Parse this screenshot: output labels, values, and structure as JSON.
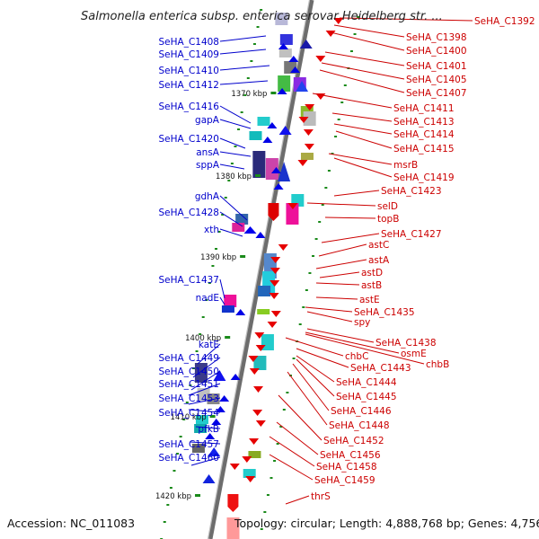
{
  "title": "Salmonella enterica subsp. enterica serovar Heidelberg str. ...",
  "accession": "Accession: NC_011083",
  "topology": "Topology: circular; Length: 4,888,768 bp; Genes: 4,756",
  "colors": {
    "left_label": "#0000cc",
    "right_label": "#cc0000",
    "forward_arrow": "#0000e6",
    "reverse_arrow": "#e60000",
    "backbone": "#777777",
    "tick": "#1a8a1a"
  },
  "kbp_ticks": [
    {
      "label": "1370 kbp"
    },
    {
      "label": "1380 kbp"
    },
    {
      "label": "1390 kbp"
    },
    {
      "label": "1400 kbp"
    },
    {
      "label": "1410 kbp"
    },
    {
      "label": "1420 kbp"
    }
  ],
  "left_genes": [
    {
      "label": "SeHA_C1408"
    },
    {
      "label": "SeHA_C1409"
    },
    {
      "label": "SeHA_C1410"
    },
    {
      "label": "SeHA_C1412"
    },
    {
      "label": "SeHA_C1416"
    },
    {
      "label": "gapA"
    },
    {
      "label": "SeHA_C1420"
    },
    {
      "label": "ansA"
    },
    {
      "label": "sppA"
    },
    {
      "label": "gdhA"
    },
    {
      "label": "SeHA_C1428"
    },
    {
      "label": "xth"
    },
    {
      "label": "SeHA_C1437"
    },
    {
      "label": "nadE"
    },
    {
      "label": "katE"
    },
    {
      "label": "SeHA_C1449"
    },
    {
      "label": "SeHA_C1450"
    },
    {
      "label": "SeHA_C1451"
    },
    {
      "label": "SeHA_C1453"
    },
    {
      "label": "SeHA_C1454"
    },
    {
      "label": "pfkB"
    },
    {
      "label": "SeHA_C1457"
    },
    {
      "label": "SeHA_C1460"
    }
  ],
  "right_genes": [
    {
      "label": "SeHA_C1392"
    },
    {
      "label": "SeHA_C1398"
    },
    {
      "label": "SeHA_C1400"
    },
    {
      "label": "SeHA_C1401"
    },
    {
      "label": "SeHA_C1405"
    },
    {
      "label": "SeHA_C1407"
    },
    {
      "label": "SeHA_C1411"
    },
    {
      "label": "SeHA_C1413"
    },
    {
      "label": "SeHA_C1414"
    },
    {
      "label": "SeHA_C1415"
    },
    {
      "label": "msrB"
    },
    {
      "label": "SeHA_C1419"
    },
    {
      "label": "SeHA_C1423"
    },
    {
      "label": "selD"
    },
    {
      "label": "topB"
    },
    {
      "label": "SeHA_C1427"
    },
    {
      "label": "astC"
    },
    {
      "label": "astA"
    },
    {
      "label": "astD"
    },
    {
      "label": "astB"
    },
    {
      "label": "astE"
    },
    {
      "label": "SeHA_C1435"
    },
    {
      "label": "spy"
    },
    {
      "label": "SeHA_C1438"
    },
    {
      "label": "osmE"
    },
    {
      "label": "chbC"
    },
    {
      "label": "chbB"
    },
    {
      "label": "SeHA_C1443"
    },
    {
      "label": "SeHA_C1444"
    },
    {
      "label": "SeHA_C1445"
    },
    {
      "label": "SeHA_C1446"
    },
    {
      "label": "SeHA_C1448"
    },
    {
      "label": "SeHA_C1452"
    },
    {
      "label": "SeHA_C1456"
    },
    {
      "label": "SeHA_C1458"
    },
    {
      "label": "SeHA_C1459"
    },
    {
      "label": "thrS"
    }
  ]
}
